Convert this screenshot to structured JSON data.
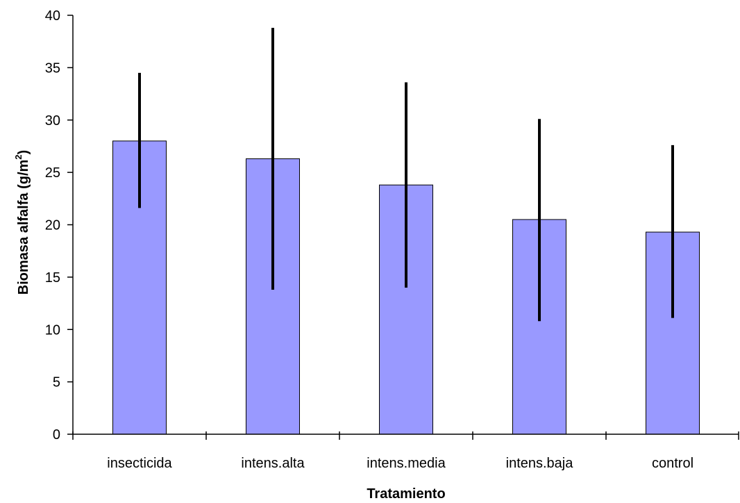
{
  "chart_data": {
    "type": "bar",
    "title": "",
    "xlabel": "Tratamiento",
    "ylabel": "Biomasa alfalfa (g/m",
    "ylabel_superscript": "2",
    "ylabel_suffix": ")",
    "categories": [
      "insecticida",
      "intens.alta",
      "intens.media",
      "intens.baja",
      "control"
    ],
    "values": [
      28.0,
      26.3,
      23.8,
      20.5,
      19.3
    ],
    "error_low": [
      21.6,
      13.8,
      14.0,
      10.8,
      11.1
    ],
    "error_high": [
      34.5,
      38.8,
      33.6,
      30.1,
      27.6
    ],
    "ylim": [
      0,
      40
    ],
    "yticks": [
      "0",
      "5",
      "10",
      "15",
      "20",
      "25",
      "30",
      "35",
      "40"
    ],
    "grid": false,
    "bar_color": "#9999FF",
    "bar_stroke": "#000000",
    "error_color": "#000000"
  }
}
